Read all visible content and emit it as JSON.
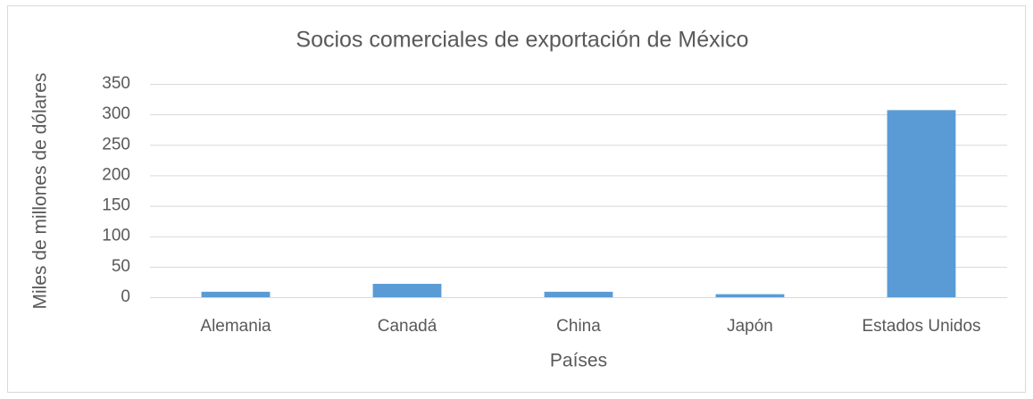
{
  "chart_data": {
    "type": "bar",
    "title": "Socios comerciales de exportación de México",
    "x_label": "Países",
    "y_label": "Miles de millones de dólares",
    "categories": [
      "Alemania",
      "Canadá",
      "China",
      "Japón",
      "Estados Unidos"
    ],
    "values": [
      9,
      22,
      9,
      5,
      307
    ],
    "color": "#5b9bd5",
    "ylim": [
      0,
      350
    ],
    "yticks": [
      0,
      50,
      100,
      150,
      200,
      250,
      300,
      350
    ],
    "grid": true
  }
}
